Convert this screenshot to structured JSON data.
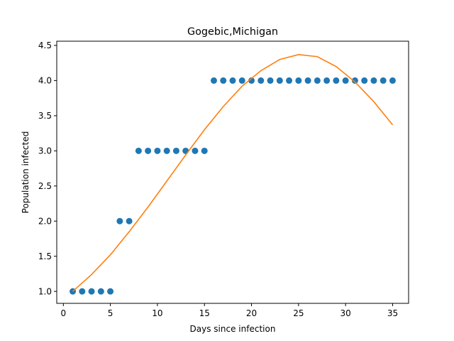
{
  "chart_data": {
    "type": "scatter",
    "title": "Gogebic,Michigan",
    "xlabel": "Days since infection",
    "ylabel": "Population infected",
    "xlim": [
      -0.7,
      36.7
    ],
    "ylim": [
      0.83,
      4.56
    ],
    "xticks": [
      0,
      5,
      10,
      15,
      20,
      25,
      30,
      35
    ],
    "yticks": [
      1.0,
      1.5,
      2.0,
      2.5,
      3.0,
      3.5,
      4.0,
      4.5
    ],
    "grid": false,
    "series": [
      {
        "kind": "scatter",
        "color": "#1f77b4",
        "x": [
          1,
          2,
          3,
          4,
          5,
          6,
          7,
          8,
          9,
          10,
          11,
          12,
          13,
          14,
          15,
          16,
          17,
          18,
          19,
          20,
          21,
          22,
          23,
          24,
          25,
          26,
          27,
          28,
          29,
          30,
          31,
          32,
          33,
          34,
          35
        ],
        "y": [
          1,
          1,
          1,
          1,
          1,
          2,
          2,
          3,
          3,
          3,
          3,
          3,
          3,
          3,
          3,
          4,
          4,
          4,
          4,
          4,
          4,
          4,
          4,
          4,
          4,
          4,
          4,
          4,
          4,
          4,
          4,
          4,
          4,
          4,
          4
        ]
      },
      {
        "kind": "line",
        "color": "#ff7f0e",
        "x": [
          1,
          3,
          5,
          7,
          9,
          11,
          13,
          15,
          17,
          19,
          21,
          23,
          25,
          27,
          29,
          31,
          33,
          35
        ],
        "y": [
          1.0,
          1.24,
          1.52,
          1.85,
          2.2,
          2.57,
          2.94,
          3.3,
          3.63,
          3.92,
          4.14,
          4.3,
          4.37,
          4.34,
          4.2,
          3.98,
          3.7,
          3.37
        ]
      }
    ]
  }
}
